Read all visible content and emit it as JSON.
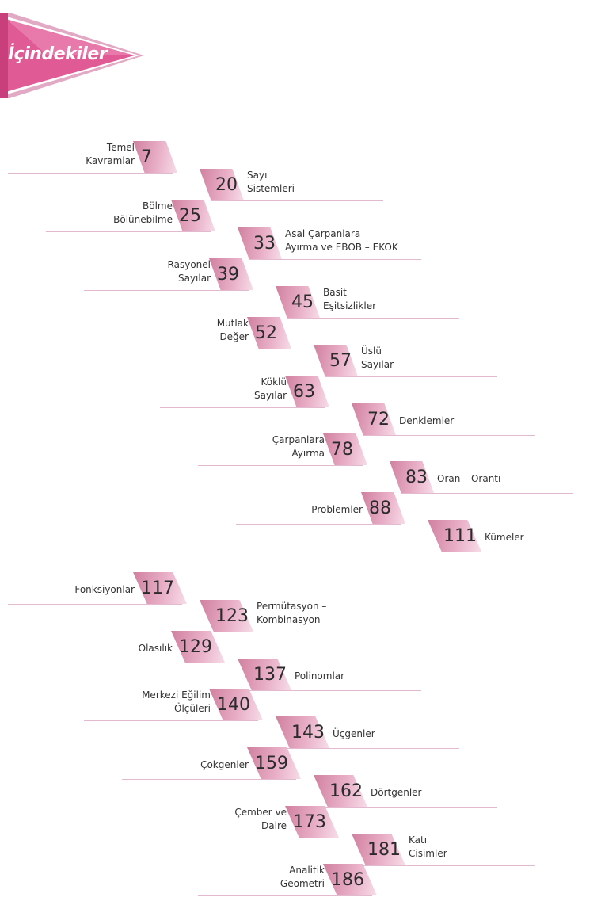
{
  "header": {
    "title": "İçindekiler"
  },
  "toc": [
    {
      "page": "7",
      "lines": [
        "Temel",
        "Kavramlar"
      ]
    },
    {
      "page": "20",
      "lines": [
        "Sayı",
        "Sistemleri"
      ]
    },
    {
      "page": "25",
      "lines": [
        "Bölme",
        "Bölünebilme"
      ]
    },
    {
      "page": "33",
      "lines": [
        "Asal Çarpanlara",
        "Ayırma ve EBOB – EKOK"
      ]
    },
    {
      "page": "39",
      "lines": [
        "Rasyonel",
        "Sayılar"
      ]
    },
    {
      "page": "45",
      "lines": [
        "Basit",
        "Eşitsizlikler"
      ]
    },
    {
      "page": "52",
      "lines": [
        "Mutlak",
        "Değer"
      ]
    },
    {
      "page": "57",
      "lines": [
        "Üslü",
        "Sayılar"
      ]
    },
    {
      "page": "63",
      "lines": [
        "Köklü",
        "Sayılar"
      ]
    },
    {
      "page": "72",
      "lines": [
        "Denklemler"
      ]
    },
    {
      "page": "78",
      "lines": [
        "Çarpanlara",
        "Ayırma"
      ]
    },
    {
      "page": "83",
      "lines": [
        "Oran – Orantı"
      ]
    },
    {
      "page": "88",
      "lines": [
        "Problemler"
      ]
    },
    {
      "page": "111",
      "lines": [
        "Kümeler"
      ]
    },
    {
      "page": "117",
      "lines": [
        "Fonksiyonlar"
      ]
    },
    {
      "page": "123",
      "lines": [
        "Permütasyon –",
        "Kombinasyon"
      ]
    },
    {
      "page": "129",
      "lines": [
        "Olasılık"
      ]
    },
    {
      "page": "137",
      "lines": [
        "Polinomlar"
      ]
    },
    {
      "page": "140",
      "lines": [
        "Merkezi Eğilim",
        "Ölçüleri"
      ]
    },
    {
      "page": "143",
      "lines": [
        "Üçgenler"
      ]
    },
    {
      "page": "159",
      "lines": [
        "Çokgenler"
      ]
    },
    {
      "page": "162",
      "lines": [
        "Dörtgenler"
      ]
    },
    {
      "page": "173",
      "lines": [
        "Çember ve",
        "Daire"
      ]
    },
    {
      "page": "181",
      "lines": [
        "Katı",
        "Cisimler"
      ]
    },
    {
      "page": "186",
      "lines": [
        "Analitik",
        "Geometri"
      ]
    }
  ]
}
